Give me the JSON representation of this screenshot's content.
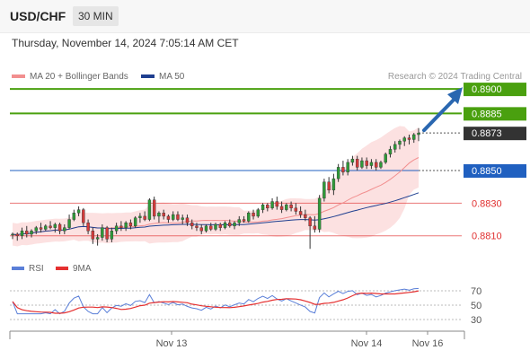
{
  "header": {
    "symbol": "USD/CHF",
    "timeframe": "30 MIN"
  },
  "datetime": "Thursday, November 14, 2024 7:05:14 AM CET",
  "credit": "Research © 2024 Trading Central",
  "colors": {
    "target": "#4aa00f",
    "pivot": "#2060c0",
    "support": "#e03030",
    "ma20": "#f28f8f",
    "ma50": "#1f3f90",
    "band": "#fbd7d7",
    "rsi": "#5a7fd8",
    "rsi_ma": "#e53030",
    "current": "#333333",
    "arrow": "#2a67b0"
  },
  "chart_data": [
    {
      "type": "candlestick",
      "title": "",
      "legend": [
        {
          "name": "MA 20 + Bollinger Bands",
          "color": "#f28f8f"
        },
        {
          "name": "MA 50",
          "color": "#1f3f90"
        }
      ],
      "x_ticks": [
        "Nov 13",
        "Nov 14",
        "Nov 16"
      ],
      "ylim": [
        0.8795,
        0.8905
      ],
      "levels": [
        {
          "value": 0.89,
          "label": "0.8900",
          "kind": "target"
        },
        {
          "value": 0.8885,
          "label": "0.8885",
          "kind": "target"
        },
        {
          "value": 0.8873,
          "label": "0.8873",
          "kind": "current"
        },
        {
          "value": 0.885,
          "label": "0.8850",
          "kind": "pivot"
        },
        {
          "value": 0.883,
          "label": "0.8830",
          "kind": "support"
        },
        {
          "value": 0.881,
          "label": "0.8810",
          "kind": "support"
        }
      ],
      "candles": [
        [
          0.8811,
          0.8812,
          0.8808,
          0.8811
        ],
        [
          0.8811,
          0.8812,
          0.8807,
          0.881
        ],
        [
          0.881,
          0.8815,
          0.8808,
          0.8813
        ],
        [
          0.8813,
          0.8816,
          0.8809,
          0.8811
        ],
        [
          0.8811,
          0.8814,
          0.8809,
          0.8813
        ],
        [
          0.8813,
          0.8816,
          0.8811,
          0.8815
        ],
        [
          0.8815,
          0.8818,
          0.8812,
          0.8814
        ],
        [
          0.8814,
          0.8817,
          0.8813,
          0.8816
        ],
        [
          0.8816,
          0.8819,
          0.8814,
          0.8815
        ],
        [
          0.8815,
          0.8818,
          0.8812,
          0.8817
        ],
        [
          0.8817,
          0.8818,
          0.8811,
          0.8813
        ],
        [
          0.8813,
          0.8817,
          0.8811,
          0.8815
        ],
        [
          0.8815,
          0.8823,
          0.8814,
          0.882
        ],
        [
          0.882,
          0.8826,
          0.8819,
          0.8824
        ],
        [
          0.8824,
          0.8828,
          0.8822,
          0.8826
        ],
        [
          0.8826,
          0.8827,
          0.8816,
          0.8818
        ],
        [
          0.8818,
          0.882,
          0.8811,
          0.8813
        ],
        [
          0.8813,
          0.8815,
          0.8805,
          0.8808
        ],
        [
          0.8808,
          0.8811,
          0.8804,
          0.8809
        ],
        [
          0.8809,
          0.8817,
          0.8807,
          0.8815
        ],
        [
          0.8815,
          0.8816,
          0.8806,
          0.8808
        ],
        [
          0.8808,
          0.8815,
          0.8806,
          0.8813
        ],
        [
          0.8813,
          0.8818,
          0.8811,
          0.8816
        ],
        [
          0.8816,
          0.8819,
          0.8813,
          0.8815
        ],
        [
          0.8815,
          0.8819,
          0.8813,
          0.8818
        ],
        [
          0.8818,
          0.882,
          0.8814,
          0.8816
        ],
        [
          0.8816,
          0.8822,
          0.8815,
          0.8821
        ],
        [
          0.8821,
          0.8824,
          0.8818,
          0.8822
        ],
        [
          0.8822,
          0.8825,
          0.8819,
          0.882
        ],
        [
          0.882,
          0.8833,
          0.8819,
          0.8832
        ],
        [
          0.8832,
          0.8834,
          0.882,
          0.8822
        ],
        [
          0.8822,
          0.8825,
          0.8818,
          0.8824
        ],
        [
          0.8824,
          0.8826,
          0.882,
          0.8822
        ],
        [
          0.8822,
          0.8823,
          0.8818,
          0.882
        ],
        [
          0.882,
          0.8825,
          0.8819,
          0.8823
        ],
        [
          0.8823,
          0.8825,
          0.8819,
          0.882
        ],
        [
          0.882,
          0.8823,
          0.8817,
          0.8821
        ],
        [
          0.8821,
          0.8823,
          0.8816,
          0.8818
        ],
        [
          0.8818,
          0.882,
          0.8814,
          0.8816
        ],
        [
          0.8816,
          0.8818,
          0.8813,
          0.8815
        ],
        [
          0.8815,
          0.8817,
          0.8811,
          0.8813
        ],
        [
          0.8813,
          0.8817,
          0.8812,
          0.8816
        ],
        [
          0.8816,
          0.8818,
          0.8813,
          0.8814
        ],
        [
          0.8814,
          0.8818,
          0.8813,
          0.8817
        ],
        [
          0.8817,
          0.8818,
          0.8813,
          0.8815
        ],
        [
          0.8815,
          0.8819,
          0.8814,
          0.8818
        ],
        [
          0.8818,
          0.882,
          0.8815,
          0.8816
        ],
        [
          0.8816,
          0.8819,
          0.8814,
          0.8818
        ],
        [
          0.8818,
          0.8822,
          0.8816,
          0.882
        ],
        [
          0.882,
          0.8822,
          0.8818,
          0.8819
        ],
        [
          0.8819,
          0.8825,
          0.8818,
          0.8824
        ],
        [
          0.8824,
          0.8826,
          0.882,
          0.8822
        ],
        [
          0.8822,
          0.8827,
          0.8821,
          0.8826
        ],
        [
          0.8826,
          0.883,
          0.8824,
          0.8829
        ],
        [
          0.8829,
          0.883,
          0.8825,
          0.8827
        ],
        [
          0.8827,
          0.8833,
          0.8826,
          0.8831
        ],
        [
          0.8831,
          0.8834,
          0.8826,
          0.8828
        ],
        [
          0.8828,
          0.8831,
          0.8824,
          0.8826
        ],
        [
          0.8826,
          0.883,
          0.8825,
          0.8829
        ],
        [
          0.8829,
          0.8831,
          0.8825,
          0.8827
        ],
        [
          0.8827,
          0.883,
          0.8823,
          0.8825
        ],
        [
          0.8825,
          0.8828,
          0.8821,
          0.8823
        ],
        [
          0.8823,
          0.8826,
          0.8819,
          0.8821
        ],
        [
          0.8821,
          0.8822,
          0.8802,
          0.8816
        ],
        [
          0.8816,
          0.8822,
          0.8812,
          0.8814
        ],
        [
          0.8814,
          0.8835,
          0.8812,
          0.8833
        ],
        [
          0.8833,
          0.8845,
          0.8831,
          0.8843
        ],
        [
          0.8843,
          0.8846,
          0.8836,
          0.8838
        ],
        [
          0.8838,
          0.8848,
          0.8835,
          0.8845
        ],
        [
          0.8845,
          0.8854,
          0.8843,
          0.8852
        ],
        [
          0.8852,
          0.8856,
          0.8847,
          0.8849
        ],
        [
          0.8849,
          0.8857,
          0.8847,
          0.8855
        ],
        [
          0.8855,
          0.8859,
          0.8853,
          0.8857
        ],
        [
          0.8857,
          0.8859,
          0.885,
          0.8852
        ],
        [
          0.8852,
          0.8858,
          0.8851,
          0.8856
        ],
        [
          0.8856,
          0.8858,
          0.8851,
          0.8853
        ],
        [
          0.8853,
          0.8857,
          0.8851,
          0.8855
        ],
        [
          0.8855,
          0.8857,
          0.885,
          0.8852
        ],
        [
          0.8852,
          0.8856,
          0.8851,
          0.8855
        ],
        [
          0.8855,
          0.8861,
          0.8854,
          0.886
        ],
        [
          0.886,
          0.8865,
          0.8858,
          0.8863
        ],
        [
          0.8863,
          0.8868,
          0.8861,
          0.8866
        ],
        [
          0.8866,
          0.8869,
          0.8863,
          0.8868
        ],
        [
          0.8868,
          0.8871,
          0.8865,
          0.887
        ],
        [
          0.887,
          0.8872,
          0.8866,
          0.8869
        ],
        [
          0.8869,
          0.8873,
          0.8867,
          0.8872
        ],
        [
          0.8872,
          0.8876,
          0.8868,
          0.8873
        ]
      ]
    },
    {
      "type": "line",
      "title": "",
      "legend": [
        {
          "name": "RSI",
          "color": "#5a7fd8"
        },
        {
          "name": "9MA",
          "color": "#e53030"
        }
      ],
      "y_ticks": [
        70,
        50,
        30
      ],
      "ylim": [
        20,
        80
      ]
    }
  ]
}
